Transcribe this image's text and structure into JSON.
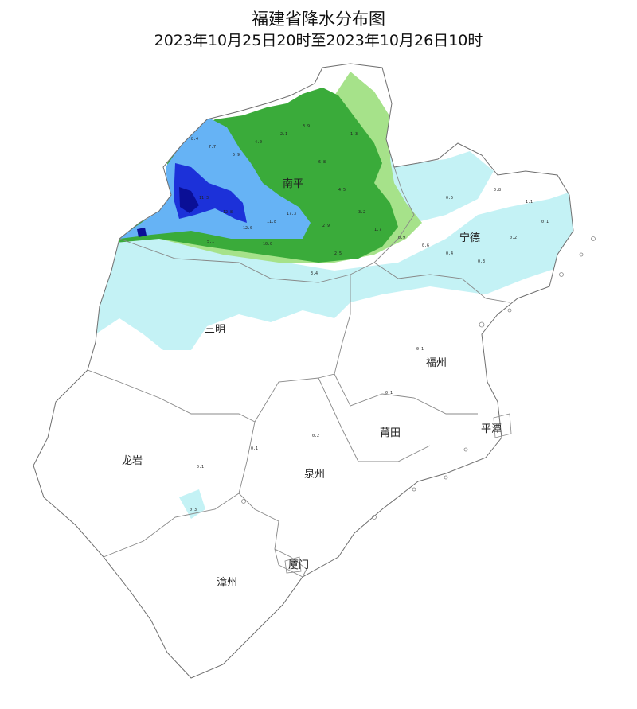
{
  "title": "福建省降水分布图",
  "subtitle": "2023年10月25日20时至2023年10月26日10时",
  "colors": {
    "trace": "#c4f2f5",
    "light": "#a6e28a",
    "moderate": "#3aab3a",
    "heavy": "#66b3f5",
    "very_heavy": "#1c31d9",
    "extreme": "#0a0f96",
    "border": "#7a7a7a"
  },
  "cities": [
    {
      "id": "nanping",
      "label": "南平"
    },
    {
      "id": "ningde",
      "label": "宁德"
    },
    {
      "id": "sanming",
      "label": "三明"
    },
    {
      "id": "fuzhou",
      "label": "福州"
    },
    {
      "id": "putian",
      "label": "莆田"
    },
    {
      "id": "pingtan",
      "label": "平潭"
    },
    {
      "id": "longyan",
      "label": "龙岩"
    },
    {
      "id": "quanzhou",
      "label": "泉州"
    },
    {
      "id": "xiamen",
      "label": "厦门"
    },
    {
      "id": "zhangzhou",
      "label": "漳州"
    }
  ],
  "station_values": [
    {
      "v": "8.4"
    },
    {
      "v": "7.7"
    },
    {
      "v": "5.9"
    },
    {
      "v": "4.0"
    },
    {
      "v": "2.1"
    },
    {
      "v": "3.9"
    },
    {
      "v": "11.3"
    },
    {
      "v": "12.8"
    },
    {
      "v": "12.0"
    },
    {
      "v": "11.8"
    },
    {
      "v": "17.3"
    },
    {
      "v": "10.0"
    },
    {
      "v": "6.8"
    },
    {
      "v": "4.5"
    },
    {
      "v": "3.2"
    },
    {
      "v": "2.9"
    },
    {
      "v": "1.7"
    },
    {
      "v": "1.3"
    },
    {
      "v": "0.9"
    },
    {
      "v": "0.6"
    },
    {
      "v": "0.4"
    },
    {
      "v": "0.3"
    },
    {
      "v": "0.2"
    },
    {
      "v": "0.1"
    },
    {
      "v": "0.5"
    },
    {
      "v": "0.8"
    },
    {
      "v": "1.1"
    },
    {
      "v": "2.5"
    },
    {
      "v": "3.4"
    },
    {
      "v": "5.1"
    },
    {
      "v": "0.1"
    },
    {
      "v": "0.1"
    },
    {
      "v": "0.2"
    },
    {
      "v": "0.1"
    },
    {
      "v": "0.3"
    },
    {
      "v": "0.1"
    }
  ]
}
